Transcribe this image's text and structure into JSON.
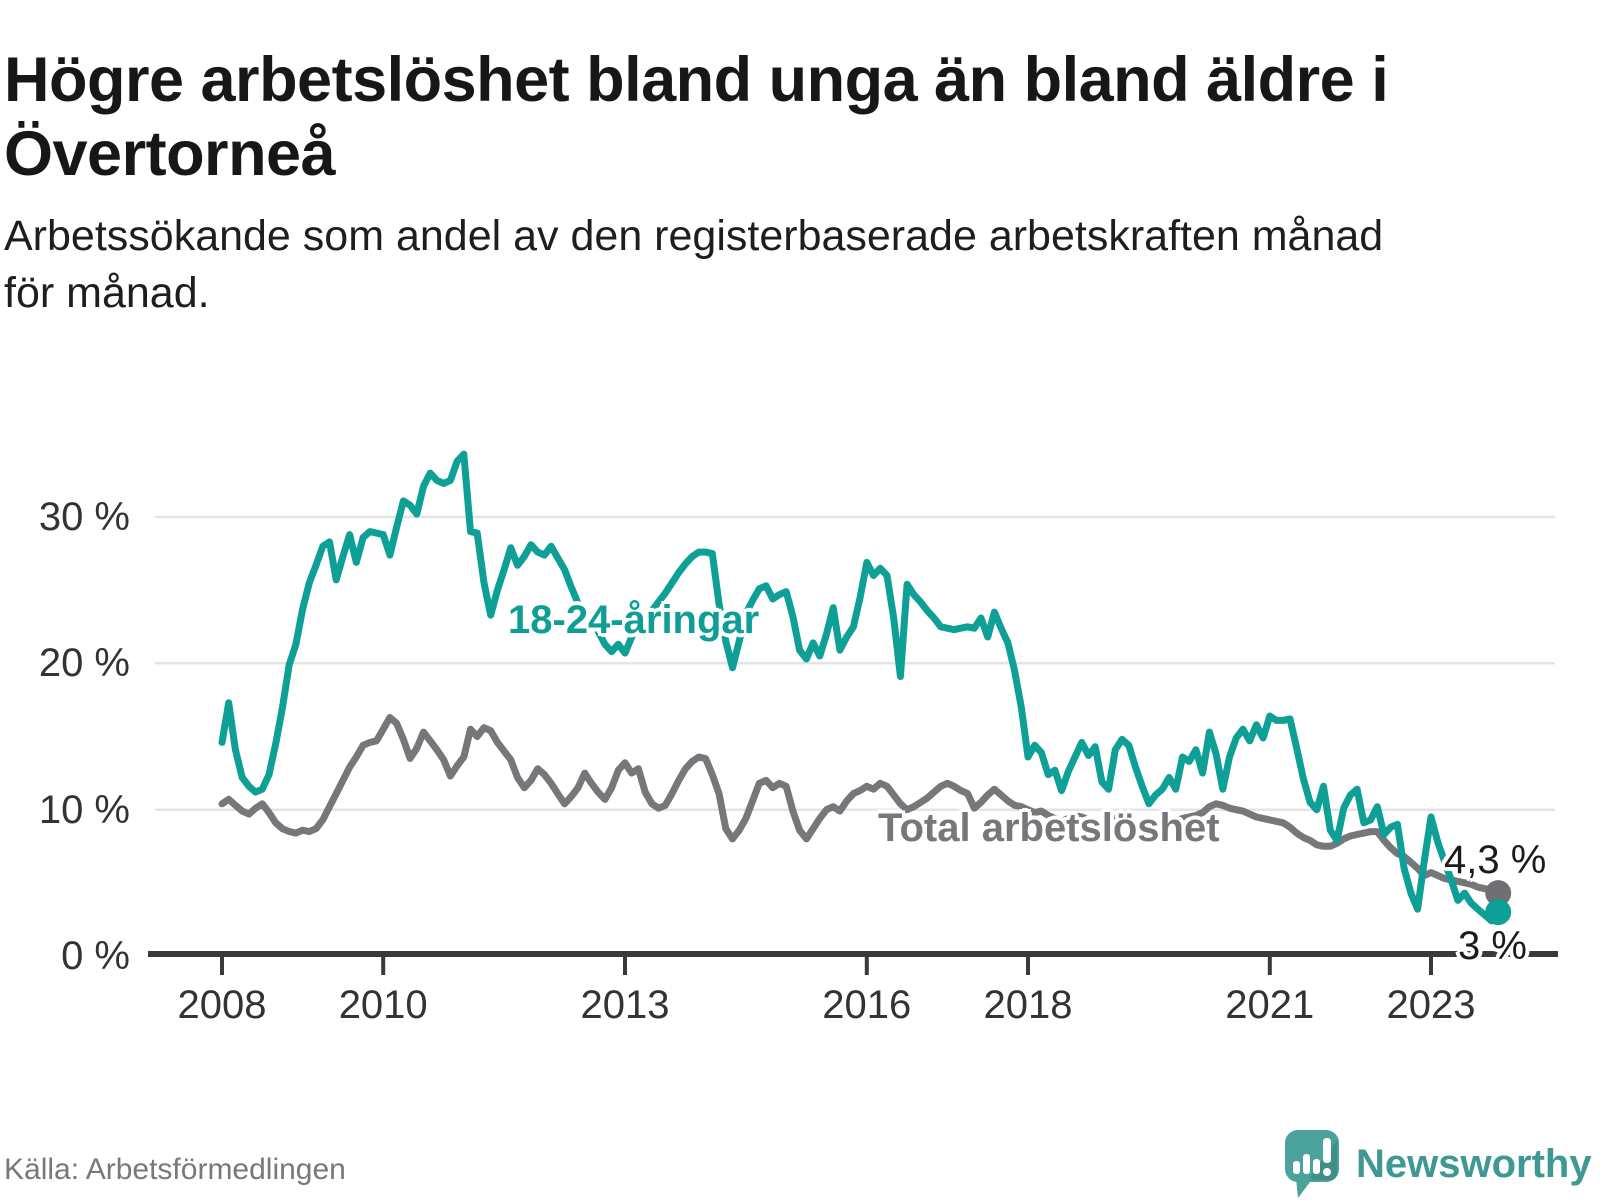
{
  "header": {
    "title": "Högre arbetslöshet bland unga än bland äldre i\nÖvertorneå",
    "subtitle": "Arbetssökande som andel av den registerbaserade arbetskraften månad\nför månad."
  },
  "chart_data": {
    "type": "line",
    "unit": "%",
    "frequency": "monthly",
    "x_start": "2008-01",
    "x_end": "2023-11",
    "ylim": [
      0,
      35
    ],
    "grid": "horizontal",
    "legend_position": "inline-labels",
    "colors": {
      "accent_teal": "#0EA096",
      "neutral_gray": "#76777A",
      "gridline": "#E4E4E4",
      "axis": "#3A3A3A",
      "text_dark": "#191715"
    },
    "y_ticks": [
      {
        "value": 0,
        "label": "0 %"
      },
      {
        "value": 10,
        "label": "10 %"
      },
      {
        "value": 20,
        "label": "20 %"
      },
      {
        "value": 30,
        "label": "30 %"
      }
    ],
    "x_ticks": [
      {
        "year": 2008,
        "label": "2008"
      },
      {
        "year": 2010,
        "label": "2010"
      },
      {
        "year": 2013,
        "label": "2013"
      },
      {
        "year": 2016,
        "label": "2016"
      },
      {
        "year": 2018,
        "label": "2018"
      },
      {
        "year": 2021,
        "label": "2021"
      },
      {
        "year": 2023,
        "label": "2023"
      }
    ],
    "series": [
      {
        "id": "youth",
        "name": "18-24-åringar",
        "color": "#0EA096",
        "dot_color": "#0EA096",
        "end_label": "3 %",
        "end_value": 3.0,
        "values": [
          14.6,
          17.3,
          14.1,
          12.2,
          11.6,
          11.2,
          11.4,
          12.4,
          14.5,
          17.0,
          19.9,
          21.3,
          23.7,
          25.5,
          26.7,
          28.0,
          28.3,
          25.7,
          27.3,
          28.8,
          26.9,
          28.6,
          29.0,
          28.9,
          28.8,
          27.4,
          29.3,
          31.1,
          30.8,
          30.2,
          32.1,
          33.0,
          32.5,
          32.3,
          32.5,
          33.8,
          34.3,
          29.0,
          28.9,
          25.5,
          23.3,
          25.0,
          26.4,
          27.9,
          26.7,
          27.3,
          28.1,
          27.6,
          27.4,
          28.0,
          27.2,
          26.4,
          25.2,
          24.1,
          23.6,
          23.0,
          22.2,
          21.3,
          20.8,
          21.3,
          20.7,
          21.8,
          22.9,
          23.1,
          23.6,
          24.2,
          24.8,
          25.5,
          26.2,
          26.8,
          27.3,
          27.6,
          27.6,
          27.5,
          24.1,
          21.5,
          19.7,
          21.5,
          23.4,
          24.3,
          25.1,
          25.3,
          24.4,
          24.7,
          24.9,
          23.2,
          20.9,
          20.3,
          21.4,
          20.5,
          22.0,
          23.8,
          20.9,
          21.8,
          22.5,
          24.5,
          26.9,
          26.0,
          26.5,
          26.0,
          23.1,
          19.1,
          25.4,
          24.7,
          24.2,
          23.6,
          23.1,
          22.5,
          22.4,
          22.3,
          22.4,
          22.5,
          22.4,
          23.1,
          21.8,
          23.5,
          22.4,
          21.4,
          19.5,
          17.0,
          13.6,
          14.4,
          13.9,
          12.4,
          12.7,
          11.3,
          12.6,
          13.6,
          14.6,
          13.7,
          14.3,
          11.9,
          11.4,
          14.1,
          14.8,
          14.4,
          12.9,
          11.6,
          10.4,
          11.0,
          11.4,
          12.2,
          11.4,
          13.6,
          13.3,
          14.1,
          12.5,
          15.3,
          13.8,
          11.4,
          13.6,
          14.9,
          15.5,
          14.7,
          15.8,
          14.9,
          16.4,
          16.1,
          16.1,
          16.2,
          14.2,
          12.1,
          10.5,
          10.0,
          11.6,
          8.6,
          7.9,
          10.1,
          11.0,
          11.4,
          9.1,
          9.3,
          10.2,
          8.3,
          8.8,
          9.0,
          6.0,
          4.3,
          3.2,
          6.5,
          9.5,
          7.8,
          6.5,
          5.2,
          3.8,
          4.3,
          3.6,
          3.2,
          2.8,
          2.4,
          3.0
        ]
      },
      {
        "id": "total",
        "name": "Total arbetslöshet",
        "color": "#76777A",
        "dot_color": "#6F7074",
        "end_label": "4,3 %",
        "end_value": 4.3,
        "values": [
          10.4,
          10.7,
          10.3,
          9.9,
          9.7,
          10.1,
          10.4,
          9.8,
          9.1,
          8.7,
          8.5,
          8.4,
          8.6,
          8.5,
          8.7,
          9.3,
          10.2,
          11.1,
          12.0,
          12.9,
          13.6,
          14.4,
          14.6,
          14.7,
          15.5,
          16.3,
          15.9,
          14.8,
          13.5,
          14.2,
          15.3,
          14.7,
          14.1,
          13.4,
          12.3,
          13.0,
          13.6,
          15.5,
          15.0,
          15.6,
          15.4,
          14.6,
          14.0,
          13.4,
          12.2,
          11.5,
          12.0,
          12.8,
          12.4,
          11.8,
          11.1,
          10.4,
          10.9,
          11.5,
          12.5,
          11.8,
          11.2,
          10.7,
          11.5,
          12.7,
          13.2,
          12.5,
          12.8,
          11.2,
          10.4,
          10.1,
          10.3,
          11.1,
          12.0,
          12.8,
          13.3,
          13.6,
          13.5,
          12.4,
          11.1,
          8.7,
          8.0,
          8.6,
          9.4,
          10.6,
          11.8,
          12.0,
          11.5,
          11.8,
          11.6,
          9.9,
          8.6,
          8.0,
          8.7,
          9.4,
          10.0,
          10.2,
          9.9,
          10.6,
          11.1,
          11.3,
          11.6,
          11.4,
          11.8,
          11.6,
          11.0,
          10.4,
          10.0,
          10.2,
          10.5,
          10.8,
          11.2,
          11.6,
          11.8,
          11.6,
          11.3,
          11.1,
          10.1,
          10.5,
          11.0,
          11.4,
          11.0,
          10.6,
          10.3,
          10.2,
          10.0,
          9.8,
          9.9,
          9.6,
          9.4,
          9.2,
          9.4,
          9.6,
          9.5,
          9.3,
          9.2,
          9.1,
          9.2,
          9.4,
          9.3,
          9.1,
          8.9,
          8.8,
          8.7,
          8.9,
          9.1,
          9.3,
          9.2,
          9.4,
          9.5,
          9.6,
          9.8,
          10.2,
          10.4,
          10.3,
          10.1,
          10.0,
          9.9,
          9.7,
          9.5,
          9.4,
          9.3,
          9.2,
          9.1,
          8.8,
          8.4,
          8.1,
          7.9,
          7.6,
          7.5,
          7.5,
          7.7,
          8.0,
          8.2,
          8.3,
          8.4,
          8.5,
          8.5,
          7.9,
          7.4,
          7.0,
          6.8,
          6.4,
          6.0,
          5.5,
          5.7,
          5.5,
          5.3,
          5.2,
          5.1,
          5.0,
          4.9,
          4.7,
          4.6,
          4.5,
          4.3
        ]
      }
    ]
  },
  "footer": {
    "source": "Källa: Arbetsförmedlingen",
    "logo_text": "Newsworthy"
  }
}
